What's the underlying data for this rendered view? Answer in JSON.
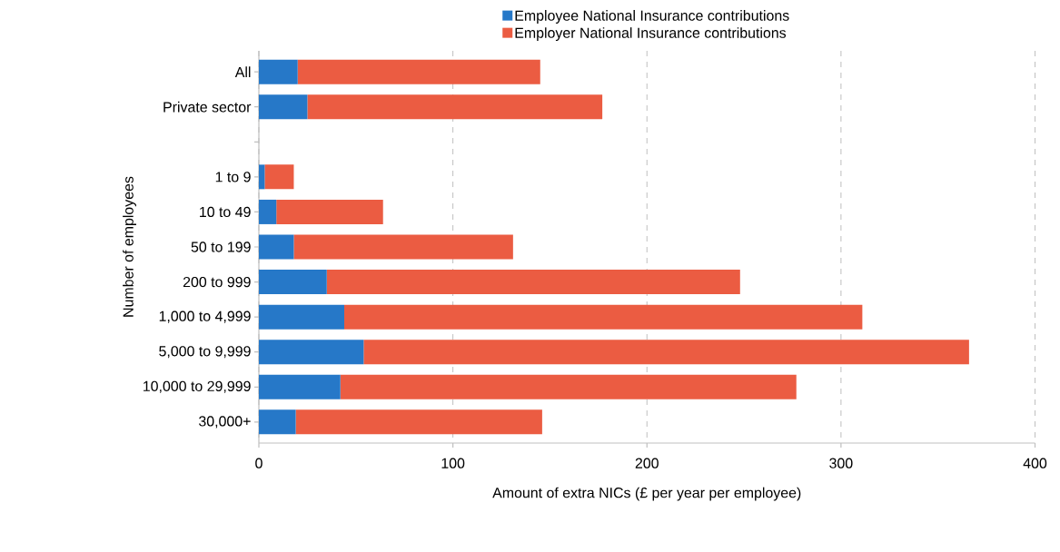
{
  "chart_data": {
    "type": "bar",
    "orientation": "horizontal",
    "stacked": true,
    "categories": [
      "All",
      "Private sector",
      null,
      "1 to 9",
      "10 to 49",
      "50 to 199",
      "200 to 999",
      "1,000 to 4,999",
      "5,000 to 9,999",
      "10,000 to 29,999",
      "30,000+"
    ],
    "series": [
      {
        "name": "Employee National Insurance contributions",
        "color": "#2678c8",
        "values": [
          20,
          25,
          null,
          3,
          9,
          18,
          35,
          44,
          54,
          42,
          19
        ]
      },
      {
        "name": "Employer National Insurance contributions",
        "color": "#eb5c42",
        "values": [
          125,
          152,
          null,
          15,
          55,
          113,
          213,
          267,
          312,
          235,
          127
        ]
      }
    ],
    "xlim": [
      0,
      400
    ],
    "xticks": [
      0,
      100,
      200,
      300,
      400
    ],
    "grid": "x",
    "legend": "top",
    "xlabel": "Amount of extra NICs (£ per year per employee)",
    "ylabel": "Number of employees"
  }
}
